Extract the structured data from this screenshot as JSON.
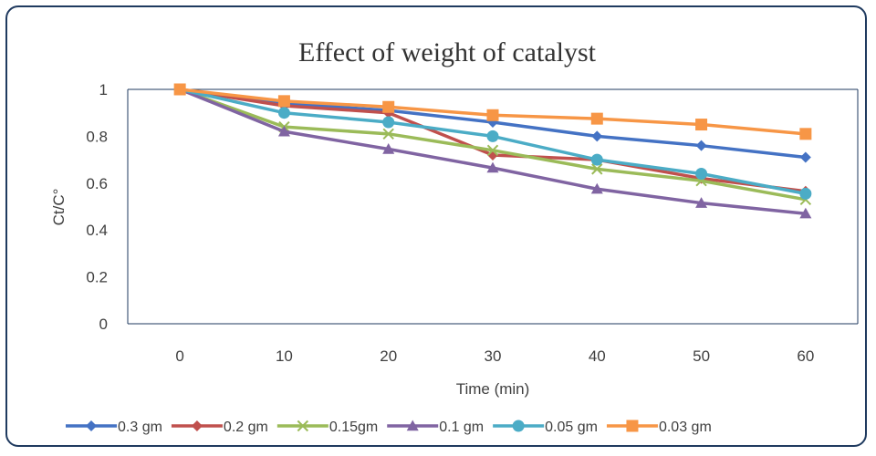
{
  "chart_data": {
    "type": "line",
    "title": "Effect of weight of catalyst",
    "xlabel": "Time (min)",
    "ylabel": "Ct/C°",
    "categories": [
      "0",
      "10",
      "20",
      "30",
      "40",
      "50",
      "60"
    ],
    "ylim": [
      0,
      1
    ],
    "yticks": [
      "0",
      "0.2",
      "0.4",
      "0.6",
      "0.8",
      "1"
    ],
    "grid": false,
    "legend_position": "bottom",
    "series": [
      {
        "name": "0.3 gm",
        "color": "#4472c4",
        "marker": "diamond",
        "values": [
          1,
          0.94,
          0.91,
          0.86,
          0.8,
          0.76,
          0.71
        ]
      },
      {
        "name": "0.2 gm",
        "color": "#c0504d",
        "marker": "diamond",
        "values": [
          1,
          0.93,
          0.9,
          0.72,
          0.7,
          0.62,
          0.565
        ]
      },
      {
        "name": "0.15gm",
        "color": "#9bbb59",
        "marker": "x",
        "values": [
          1,
          0.84,
          0.81,
          0.74,
          0.66,
          0.61,
          0.53
        ]
      },
      {
        "name": "0.1 gm",
        "color": "#8064a2",
        "marker": "triangle",
        "values": [
          1,
          0.82,
          0.745,
          0.665,
          0.575,
          0.515,
          0.47
        ]
      },
      {
        "name": "0.05 gm",
        "color": "#4bacc6",
        "marker": "circle",
        "values": [
          1,
          0.9,
          0.86,
          0.8,
          0.7,
          0.64,
          0.555
        ]
      },
      {
        "name": "0.03 gm",
        "color": "#f79646",
        "marker": "square",
        "values": [
          1,
          0.95,
          0.925,
          0.89,
          0.875,
          0.85,
          0.81
        ]
      }
    ]
  }
}
